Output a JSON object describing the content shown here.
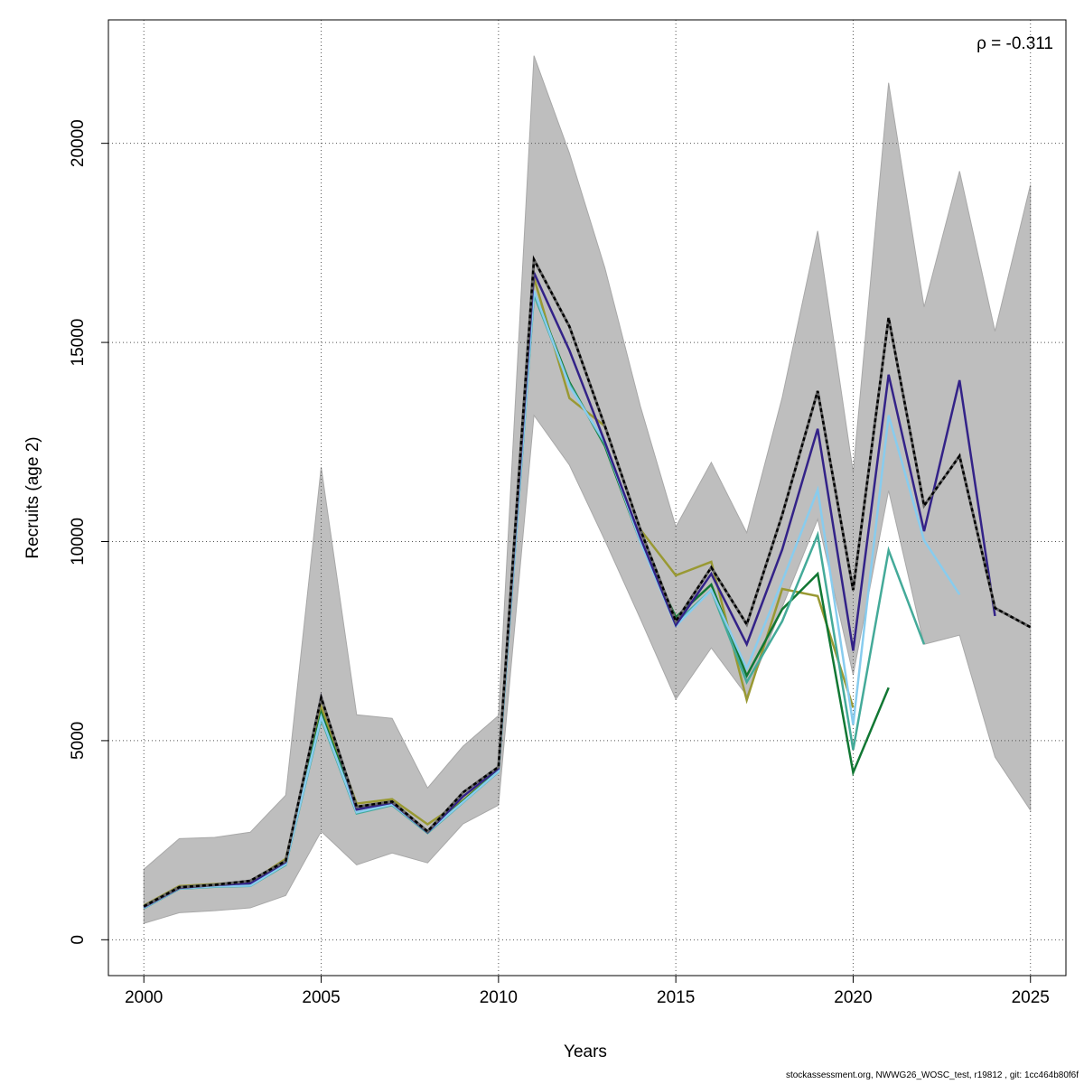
{
  "chart_data": {
    "type": "line",
    "xlabel": "Years",
    "ylabel": "Recruits (age 2)",
    "xlim": [
      1999,
      2026
    ],
    "ylim": [
      -900,
      23100
    ],
    "xticks": [
      2000,
      2005,
      2010,
      2015,
      2020,
      2025
    ],
    "yticks": [
      0,
      5000,
      10000,
      15000,
      20000
    ],
    "grid": true,
    "annotation": "ρ = -0.311",
    "band": {
      "color": "#bebebe",
      "x": [
        2000,
        2001,
        2002,
        2003,
        2004,
        2005,
        2006,
        2007,
        2008,
        2009,
        2010,
        2011,
        2012,
        2013,
        2014,
        2015,
        2016,
        2017,
        2018,
        2019,
        2020,
        2021,
        2022,
        2023,
        2024,
        2025
      ],
      "upper": [
        1770,
        2540,
        2570,
        2700,
        3630,
        11870,
        5650,
        5560,
        3810,
        4860,
        5630,
        22200,
        19750,
        16870,
        13400,
        10370,
        11990,
        10220,
        13620,
        17800,
        11740,
        21520,
        15890,
        19300,
        15280,
        18960
      ],
      "lower": [
        410,
        680,
        730,
        800,
        1110,
        2720,
        1880,
        2180,
        1930,
        2910,
        3380,
        13170,
        11920,
        10030,
        8060,
        6040,
        7330,
        6130,
        8350,
        10560,
        6650,
        11280,
        7420,
        7650,
        4590,
        3250
      ]
    },
    "series": [
      {
        "color": "#999933",
        "x0": 2000,
        "values": [
          860,
          1350,
          1400,
          1450,
          2030,
          5850,
          3420,
          3530,
          2900,
          3500,
          4300,
          16620,
          13600,
          12900,
          10300,
          9150,
          9490,
          6020,
          8810,
          8630,
          5830
        ]
      },
      {
        "color": "#117733",
        "x0": 2000,
        "values": [
          800,
          1290,
          1350,
          1380,
          1950,
          5700,
          3270,
          3450,
          2700,
          3480,
          4250,
          16280,
          14000,
          12400,
          10000,
          8100,
          8920,
          6630,
          8300,
          9190,
          4200,
          6330
        ]
      },
      {
        "color": "#44AA99",
        "x0": 2000,
        "values": [
          790,
          1280,
          1330,
          1350,
          1880,
          5550,
          3170,
          3380,
          2680,
          3450,
          4220,
          16200,
          13950,
          12450,
          10050,
          7950,
          8780,
          6470,
          8000,
          10170,
          4770,
          9780,
          7420
        ]
      },
      {
        "color": "#88CCEE",
        "x0": 2000,
        "values": [
          800,
          1290,
          1340,
          1360,
          1900,
          5600,
          3200,
          3400,
          2700,
          3460,
          4230,
          16300,
          13900,
          12500,
          10000,
          7880,
          8780,
          6810,
          9000,
          11300,
          5400,
          13170,
          10030,
          8670
        ]
      },
      {
        "color": "#332288",
        "x0": 2000,
        "values": [
          820,
          1300,
          1370,
          1420,
          1950,
          6100,
          3270,
          3440,
          2700,
          3600,
          4300,
          16750,
          14800,
          12500,
          10100,
          7900,
          9190,
          7420,
          9800,
          12830,
          7260,
          14190,
          10260,
          14050,
          8130
        ]
      },
      {
        "color": "#000000",
        "dashed": true,
        "x0": 2000,
        "values": [
          840,
          1320,
          1380,
          1480,
          1980,
          6080,
          3340,
          3470,
          2720,
          3700,
          4340,
          17080,
          15400,
          12900,
          10300,
          8000,
          9350,
          7920,
          10670,
          13780,
          8780,
          15620,
          10900,
          12150,
          8330,
          7850
        ]
      }
    ]
  },
  "footer": "stockassessment.org, NWWG26_WOSC_test, r19812 , git: 1cc464b80f6f"
}
